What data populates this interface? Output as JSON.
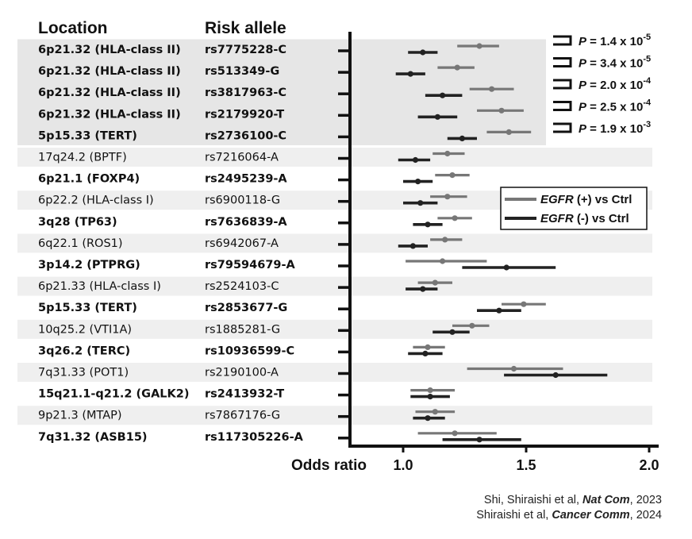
{
  "chart_data": {
    "type": "forest",
    "headers": {
      "location": "Location",
      "allele": "Risk allele"
    },
    "xlabel": "Odds ratio",
    "xlim": [
      0.8,
      2.0
    ],
    "xticks": [
      "1.0",
      "1.5",
      "2.0"
    ],
    "xtick_values": [
      1.0,
      1.5,
      2.0
    ],
    "legend": [
      {
        "prefix": "EGFR",
        "suffix": " (+) vs Ctrl",
        "color": "#777777"
      },
      {
        "prefix": "EGFR",
        "suffix": " (-) vs Ctrl",
        "color": "#222222"
      }
    ],
    "series_colors": {
      "pos": "#777777",
      "neg": "#222222"
    },
    "rows": [
      {
        "location": "6p21.32 (HLA-class II)",
        "allele": "rs7775228-C",
        "bold": true,
        "shade": "#e6e6e6",
        "pos": {
          "or": 1.31,
          "lo": 1.22,
          "hi": 1.39
        },
        "neg": {
          "or": 1.08,
          "lo": 1.02,
          "hi": 1.14
        }
      },
      {
        "location": "6p21.32 (HLA-class II)",
        "allele": "rs513349-G",
        "bold": true,
        "shade": "#e6e6e6",
        "pos": {
          "or": 1.22,
          "lo": 1.14,
          "hi": 1.29
        },
        "neg": {
          "or": 1.03,
          "lo": 0.97,
          "hi": 1.09
        }
      },
      {
        "location": "6p21.32 (HLA-class II)",
        "allele": "rs3817963-C",
        "bold": true,
        "shade": "#e6e6e6",
        "pos": {
          "or": 1.36,
          "lo": 1.27,
          "hi": 1.45
        },
        "neg": {
          "or": 1.16,
          "lo": 1.09,
          "hi": 1.24
        }
      },
      {
        "location": "6p21.32 (HLA-class II)",
        "allele": "rs2179920-T",
        "bold": true,
        "shade": "#e6e6e6",
        "pos": {
          "or": 1.4,
          "lo": 1.3,
          "hi": 1.49
        },
        "neg": {
          "or": 1.14,
          "lo": 1.06,
          "hi": 1.22
        }
      },
      {
        "location": "5p15.33 (TERT)",
        "allele": "rs2736100-C",
        "bold": true,
        "shade": "#e6e6e6",
        "pos": {
          "or": 1.43,
          "lo": 1.34,
          "hi": 1.52
        },
        "neg": {
          "or": 1.24,
          "lo": 1.18,
          "hi": 1.3
        }
      },
      {
        "location": "17q24.2 (BPTF)",
        "allele": "rs7216064-A",
        "bold": false,
        "shade": "#efefef",
        "pos": {
          "or": 1.18,
          "lo": 1.12,
          "hi": 1.25
        },
        "neg": {
          "or": 1.05,
          "lo": 0.98,
          "hi": 1.11
        }
      },
      {
        "location": "6p21.1 (FOXP4)",
        "allele": "rs2495239-A",
        "bold": true,
        "shade": null,
        "pos": {
          "or": 1.2,
          "lo": 1.13,
          "hi": 1.27
        },
        "neg": {
          "or": 1.06,
          "lo": 1.0,
          "hi": 1.12
        }
      },
      {
        "location": "6p22.2 (HLA-class I)",
        "allele": "rs6900118-G",
        "bold": false,
        "shade": "#efefef",
        "pos": {
          "or": 1.18,
          "lo": 1.11,
          "hi": 1.26
        },
        "neg": {
          "or": 1.07,
          "lo": 1.0,
          "hi": 1.14
        }
      },
      {
        "location": "3q28 (TP63)",
        "allele": "rs7636839-A",
        "bold": true,
        "shade": null,
        "pos": {
          "or": 1.21,
          "lo": 1.14,
          "hi": 1.28
        },
        "neg": {
          "or": 1.1,
          "lo": 1.04,
          "hi": 1.16
        }
      },
      {
        "location": "6q22.1 (ROS1)",
        "allele": "rs6942067-A",
        "bold": false,
        "shade": "#efefef",
        "pos": {
          "or": 1.17,
          "lo": 1.11,
          "hi": 1.24
        },
        "neg": {
          "or": 1.04,
          "lo": 0.98,
          "hi": 1.1
        }
      },
      {
        "location": "3p14.2 (PTPRG)",
        "allele": "rs79594679-A",
        "bold": true,
        "shade": null,
        "pos": {
          "or": 1.16,
          "lo": 1.01,
          "hi": 1.34
        },
        "neg": {
          "or": 1.42,
          "lo": 1.24,
          "hi": 1.62
        }
      },
      {
        "location": "6p21.33 (HLA-class I)",
        "allele": "rs2524103-C",
        "bold": false,
        "shade": "#efefef",
        "pos": {
          "or": 1.13,
          "lo": 1.06,
          "hi": 1.2
        },
        "neg": {
          "or": 1.08,
          "lo": 1.01,
          "hi": 1.14
        }
      },
      {
        "location": "5p15.33 (TERT)",
        "allele": "rs2853677-G",
        "bold": true,
        "shade": null,
        "pos": {
          "or": 1.49,
          "lo": 1.4,
          "hi": 1.58
        },
        "neg": {
          "or": 1.39,
          "lo": 1.3,
          "hi": 1.48
        }
      },
      {
        "location": "10q25.2 (VTI1A)",
        "allele": "rs1885281-G",
        "bold": false,
        "shade": "#efefef",
        "pos": {
          "or": 1.28,
          "lo": 1.2,
          "hi": 1.35
        },
        "neg": {
          "or": 1.2,
          "lo": 1.12,
          "hi": 1.27
        }
      },
      {
        "location": "3q26.2 (TERC)",
        "allele": "rs10936599-C",
        "bold": true,
        "shade": null,
        "pos": {
          "or": 1.1,
          "lo": 1.04,
          "hi": 1.17
        },
        "neg": {
          "or": 1.09,
          "lo": 1.02,
          "hi": 1.16
        }
      },
      {
        "location": "7q31.33 (POT1)",
        "allele": "rs2190100-A",
        "bold": false,
        "shade": "#efefef",
        "pos": {
          "or": 1.45,
          "lo": 1.26,
          "hi": 1.65
        },
        "neg": {
          "or": 1.62,
          "lo": 1.41,
          "hi": 1.83
        }
      },
      {
        "location": "15q21.1-q21.2 (GALK2)",
        "allele": "rs2413932-T",
        "bold": true,
        "shade": null,
        "pos": {
          "or": 1.11,
          "lo": 1.03,
          "hi": 1.21
        },
        "neg": {
          "or": 1.11,
          "lo": 1.03,
          "hi": 1.19
        }
      },
      {
        "location": "9p21.3 (MTAP)",
        "allele": "rs7867176-G",
        "bold": false,
        "shade": "#efefef",
        "pos": {
          "or": 1.13,
          "lo": 1.05,
          "hi": 1.21
        },
        "neg": {
          "or": 1.1,
          "lo": 1.04,
          "hi": 1.17
        }
      },
      {
        "location": "7q31.32 (ASB15)",
        "allele": "rs117305226-A",
        "bold": true,
        "shade": null,
        "pos": {
          "or": 1.21,
          "lo": 1.06,
          "hi": 1.38
        },
        "neg": {
          "or": 1.31,
          "lo": 1.16,
          "hi": 1.48
        }
      }
    ],
    "pvalues": [
      {
        "text": "P",
        "eq": " = 1.4 x 10",
        "exp": "-5"
      },
      {
        "text": "P",
        "eq": " = 3.4 x 10",
        "exp": "-5"
      },
      {
        "text": "P",
        "eq": " = 2.0 x 10",
        "exp": "-4"
      },
      {
        "text": "P",
        "eq": " = 2.5 x 10",
        "exp": "-4"
      },
      {
        "text": "P",
        "eq": " = 1.9 x 10",
        "exp": "-3"
      }
    ]
  },
  "citation": {
    "line1": {
      "authors": "Shi, Shiraishi et al, ",
      "journal": "Nat Com",
      "year": ", 2023"
    },
    "line2": {
      "authors": "Shiraishi et al, ",
      "journal": "Cancer Comm",
      "year": ", 2024"
    }
  }
}
